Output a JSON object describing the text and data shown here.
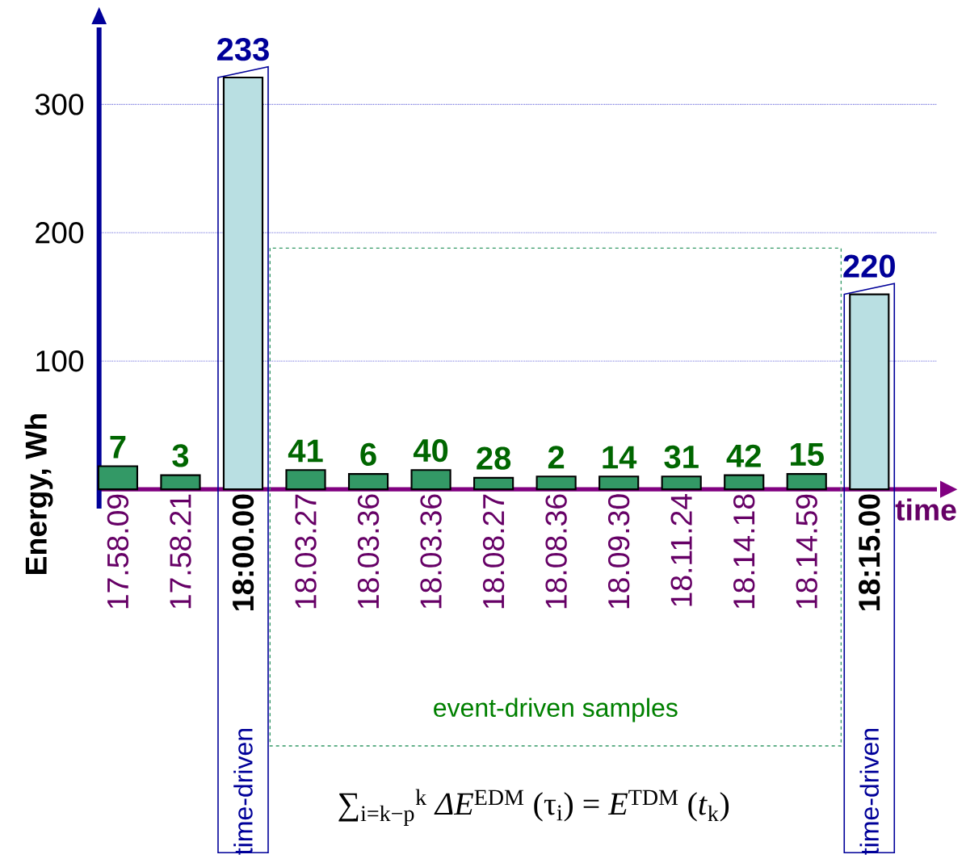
{
  "chart_data": {
    "type": "bar",
    "ylabel": "Energy, Wh",
    "xlabel": "time",
    "categories": [
      "17.58.09",
      "17.58.21",
      "18:00.00",
      "18.03.27",
      "18.03.36",
      "18.03.36",
      "18.08.27",
      "18.08.36",
      "18.09.30",
      "18.11.24",
      "18.14.18",
      "18.14.59",
      "18:15.00"
    ],
    "values": [
      18,
      11,
      321,
      15,
      12,
      15,
      9,
      10,
      10,
      10,
      11,
      12,
      152
    ],
    "colors": [
      "#339966",
      "#339966",
      "#b9dfe2",
      "#339966",
      "#339966",
      "#339966",
      "#339966",
      "#339966",
      "#339966",
      "#339966",
      "#339966",
      "#339966",
      "#b9dfe2"
    ],
    "ylim": [
      -15,
      360
    ],
    "yticks": [
      100,
      200,
      300
    ],
    "grid": "y",
    "annotations": [
      "7",
      "3",
      "233",
      "41",
      "6",
      "40",
      "28",
      "2",
      "14",
      "31",
      "42",
      "15",
      "220",
      "time-driven",
      "time-driven",
      "event-driven samples",
      "∑$_{i=k−p}$$^{k}$ *ΔE*$^{EDM}$ (τ$_{i}$) = *E*$^{TDM}$ (*t*$_{k}$)"
    ]
  }
}
